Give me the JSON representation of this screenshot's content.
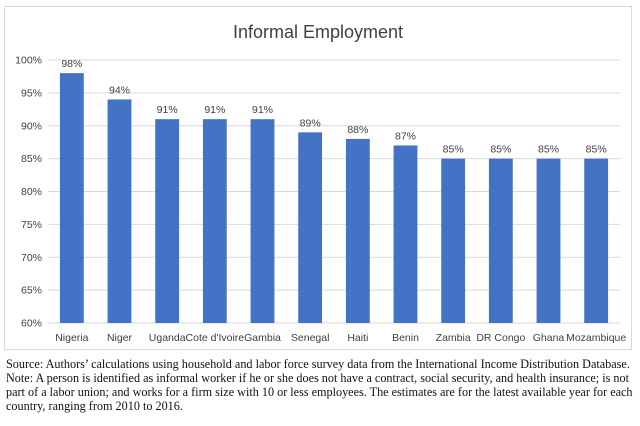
{
  "chart_data": {
    "type": "bar",
    "title": "Informal Employment",
    "xlabel": "",
    "ylabel": "",
    "categories": [
      "Nigeria",
      "Niger",
      "Uganda",
      "Cote d'Ivoire",
      "Gambia",
      "Senegal",
      "Haiti",
      "Benin",
      "Zambia",
      "DR Congo",
      "Ghana",
      "Mozambique"
    ],
    "values": [
      98,
      94,
      91,
      91,
      91,
      89,
      88,
      87,
      85,
      85,
      85,
      85
    ],
    "value_labels": [
      "98%",
      "94%",
      "91%",
      "91%",
      "91%",
      "89%",
      "88%",
      "87%",
      "85%",
      "85%",
      "85%",
      "85%"
    ],
    "ylim": [
      60,
      100
    ],
    "yticks": [
      60,
      65,
      70,
      75,
      80,
      85,
      90,
      95,
      100
    ],
    "ytick_labels": [
      "60%",
      "65%",
      "70%",
      "75%",
      "80%",
      "85%",
      "90%",
      "95%",
      "100%"
    ],
    "grid": true,
    "bar_color": "#4472c4"
  },
  "caption": {
    "source": "Source: Authors’ calculations using household and labor force survey data from the International Income Distribution Database.",
    "note": "Note: A person is identified as informal worker if he or she does not have a contract, social security, and health insurance; is not part of a labor union; and works for a firm size with 10 or less employees. The estimates are for the latest available year for each country, ranging from 2010 to 2016."
  }
}
